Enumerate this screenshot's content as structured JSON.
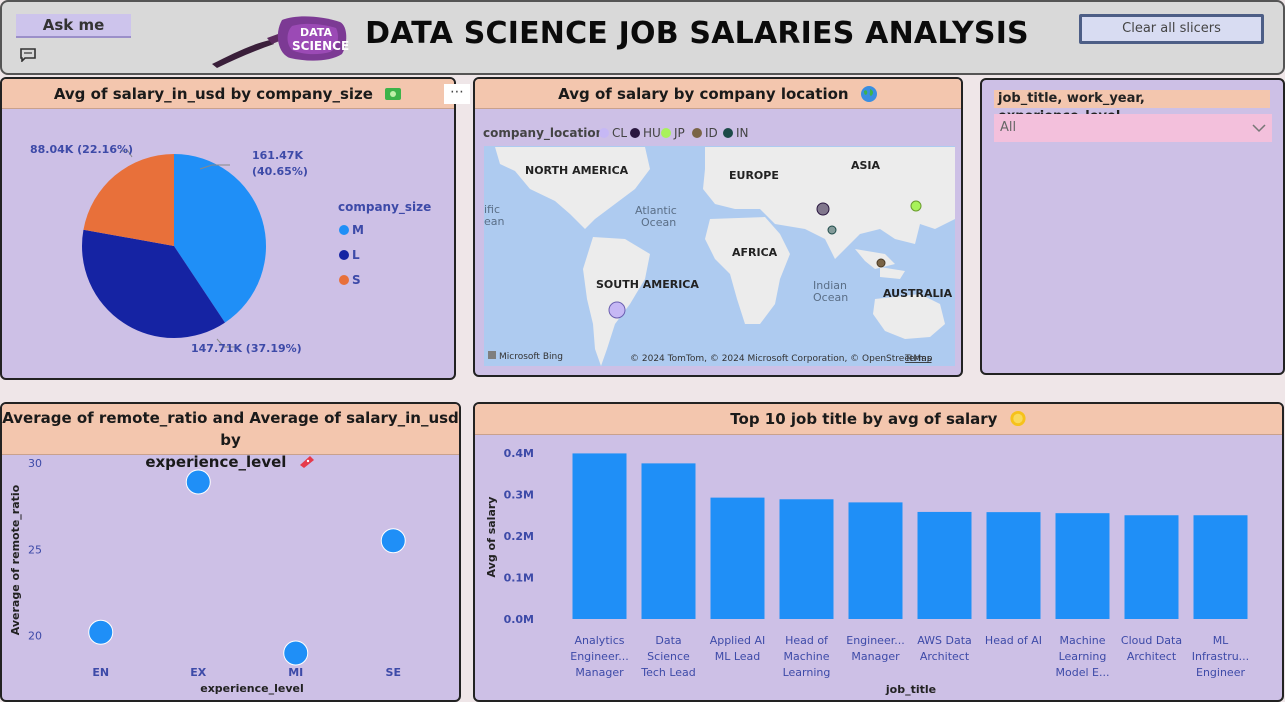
{
  "header": {
    "ask_me": "Ask me",
    "title": "DATA SCIENCE JOB SALARIES ANALYSIS",
    "logo_text": "DATA SCIENCE",
    "clear_slicers": "Clear all slicers"
  },
  "pie_panel": {
    "title": "Avg of salary_in_usd by company_size",
    "emoji": "money-icon",
    "legend_title": "company_size",
    "labels": {
      "m": "161.47K",
      "m_pct": "(40.65%)",
      "l": "147.71K (37.19%)",
      "s": "88.04K (22.16%)"
    },
    "colors": {
      "M": "#1f8ff7",
      "L": "#1523a3",
      "S": "#e8703a"
    }
  },
  "map_panel": {
    "title": "Avg of salary by company location",
    "emoji": "globe-icon",
    "legend_title": "company_location",
    "legend": [
      {
        "code": "CL",
        "color": "#c6b8f5"
      },
      {
        "code": "HU",
        "color": "#2a1740"
      },
      {
        "code": "JP",
        "color": "#a8f25a"
      },
      {
        "code": "ID",
        "color": "#7a6446"
      },
      {
        "code": "IN",
        "color": "#1c4a48"
      }
    ],
    "labels": {
      "north_america": "NORTH AMERICA",
      "europe": "EUROPE",
      "asia": "ASIA",
      "africa": "AFRICA",
      "south_america": "SOUTH AMERICA",
      "australia": "AUSTRALIA",
      "atlantic": "Atlantic",
      "atlantic2": "Ocean",
      "indian": "Indian",
      "indian2": "Ocean",
      "pacific": "ific",
      "pacific2": "ean",
      "bing": "Microsoft Bing",
      "copyright": "© 2024 TomTom, © 2024 Microsoft Corporation, © OpenStreetMap",
      "terms": "Terms"
    }
  },
  "slicer": {
    "title": "job_title, work_year, experience_level",
    "value": "All"
  },
  "scatter_panel": {
    "title_line1": "Average of remote_ratio and Average of salary_in_usd by",
    "title_line2": "experience_level",
    "emoji": "ticket-icon"
  },
  "bar_panel": {
    "title": "Top 10 job title by avg of salary",
    "emoji": "coin-icon"
  },
  "chart_data": [
    {
      "type": "pie",
      "title": "Avg of salary_in_usd by company_size",
      "legend_title": "company_size",
      "categories": [
        "M",
        "L",
        "S"
      ],
      "values": [
        161470,
        147710,
        88040
      ],
      "percent": [
        40.65,
        37.19,
        22.16
      ]
    },
    {
      "type": "scatter",
      "title": "Average of remote_ratio and Average of salary_in_usd by experience_level",
      "xlabel": "experience_level",
      "ylabel": "Average of remote_ratio",
      "x": [
        "EN",
        "EX",
        "MI",
        "SE"
      ],
      "y": [
        20.2,
        28.9,
        19.0,
        25.5
      ],
      "ticks": [
        "20",
        "25",
        "30"
      ],
      "ylim": [
        19,
        30
      ]
    },
    {
      "type": "bar",
      "title": "Top 10 job title by avg of salary",
      "xlabel": "job_title",
      "ylabel": "Avg of salary",
      "categories": [
        [
          "Analytics",
          "Engineer...",
          "Manager"
        ],
        [
          "Data",
          "Science",
          "Tech Lead"
        ],
        [
          "Applied AI",
          "ML Lead"
        ],
        [
          "Head of",
          "Machine",
          "Learning"
        ],
        [
          "Engineer...",
          "Manager"
        ],
        [
          "AWS Data",
          "Architect"
        ],
        [
          "Head of AI"
        ],
        [
          "Machine",
          "Learning",
          "Model E..."
        ],
        [
          "Cloud Data",
          "Architect"
        ],
        [
          "ML",
          "Infrastru...",
          "Engineer"
        ]
      ],
      "values": [
        399000,
        375000,
        292500,
        288500,
        281000,
        258000,
        257500,
        255000,
        250000,
        250000
      ],
      "ticks": [
        "0.0M",
        "0.1M",
        "0.2M",
        "0.3M",
        "0.4M"
      ],
      "ylim": [
        0,
        400000
      ],
      "color": "#1f8ff7"
    }
  ]
}
